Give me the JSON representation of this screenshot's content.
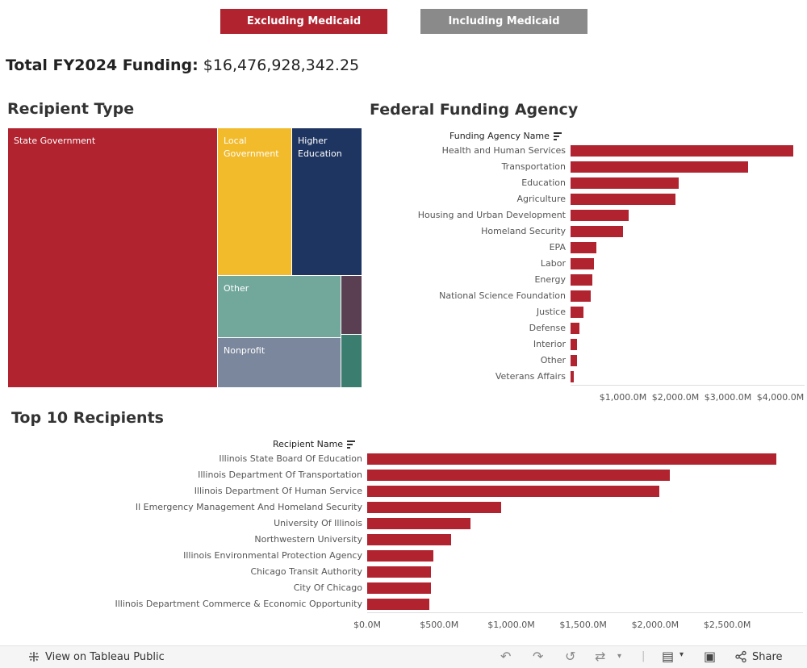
{
  "toggles": {
    "excluding": "Excluding Medicaid",
    "including": "Including Medicaid"
  },
  "total": {
    "label": "Total FY2024 Funding:",
    "value": "$16,476,928,342.25"
  },
  "recipient_type": {
    "title": "Recipient Type",
    "tiles": [
      {
        "label": "State Government",
        "color": "#b0232f"
      },
      {
        "label": "Local Government",
        "color": "#f2bb2c"
      },
      {
        "label": "Higher Education",
        "color": "#1f3561"
      },
      {
        "label": "Other",
        "color": "#72a89c"
      },
      {
        "label": "",
        "color": "#5a3f52"
      },
      {
        "label": "Nonprofit",
        "color": "#7b879c"
      },
      {
        "label": "",
        "color": "#3b7d6f"
      }
    ]
  },
  "agency": {
    "title": "Federal Funding Agency",
    "axis_header": "Funding Agency Name",
    "bar_color": "#b0232f",
    "ticks": [
      "$1,000.0M",
      "$2,000.0M",
      "$3,000.0M",
      "$4,000.0M"
    ],
    "chart_data": {
      "type": "bar",
      "orientation": "horizontal",
      "categories": [
        "Health and Human Services",
        "Transportation",
        "Education",
        "Agriculture",
        "Housing and Urban Development",
        "Homeland Security",
        "EPA",
        "Labor",
        "Energy",
        "National Science Foundation",
        "Justice",
        "Defense",
        "Interior",
        "Other",
        "Veterans Affairs"
      ],
      "values": [
        4250,
        3390,
        2060,
        2000,
        1110,
        1000,
        490,
        450,
        420,
        390,
        240,
        170,
        120,
        120,
        60
      ],
      "unit": "$M",
      "xlim": [
        0,
        4400
      ],
      "tick_values": [
        1000,
        2000,
        3000,
        4000
      ]
    }
  },
  "recipients": {
    "title": "Top 10 Recipients",
    "axis_header": "Recipient Name",
    "bar_color": "#b0232f",
    "ticks": [
      "$0.0M",
      "$500.0M",
      "$1,000.0M",
      "$1,500.0M",
      "$2,000.0M",
      "$2,500.0M"
    ],
    "chart_data": {
      "type": "bar",
      "orientation": "horizontal",
      "categories": [
        "Illinois State Board Of Education",
        "Illinois Department Of Transportation",
        "Illinois Department Of Human Service",
        "Il Emergency Management And Homeland Security",
        "University Of Illinois",
        "Northwestern University",
        "Illinois Environmental Protection Agency",
        "Chicago Transit Authority",
        "City Of Chicago",
        "Illinois Department Commerce & Economic Opportunity"
      ],
      "values": [
        2840,
        2100,
        2030,
        930,
        720,
        580,
        460,
        440,
        440,
        430
      ],
      "unit": "$M",
      "xlim": [
        0,
        2970
      ],
      "tick_values": [
        0,
        500,
        1000,
        1500,
        2000,
        2500
      ]
    }
  },
  "footer": {
    "view_label": "View on Tableau Public",
    "share_label": "Share"
  }
}
